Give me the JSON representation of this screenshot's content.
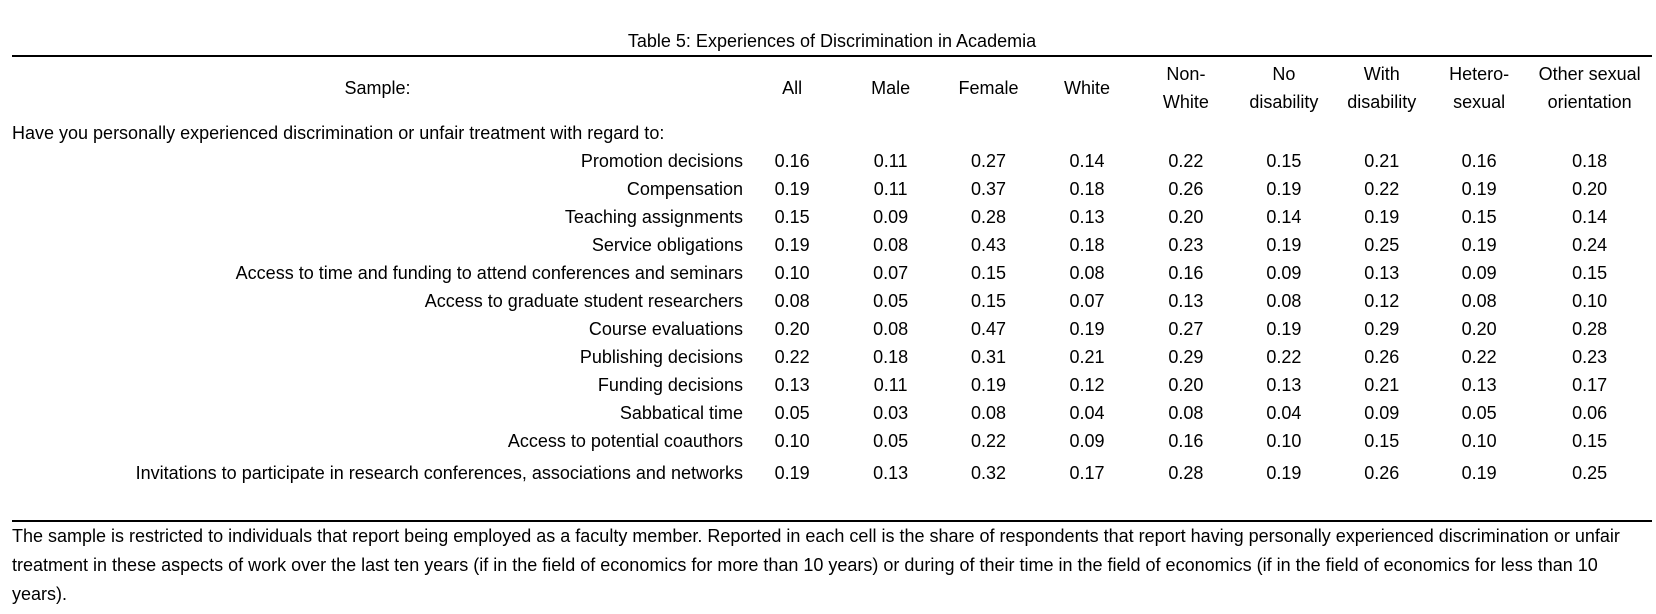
{
  "title": "Table 5: Experiences of Discrimination in Academia",
  "sample_label": "Sample:",
  "columns": [
    {
      "line1": "All",
      "line2": ""
    },
    {
      "line1": "Male",
      "line2": ""
    },
    {
      "line1": "Female",
      "line2": ""
    },
    {
      "line1": "White",
      "line2": ""
    },
    {
      "line1": "Non-",
      "line2": "White"
    },
    {
      "line1": "No",
      "line2": "disability"
    },
    {
      "line1": "With",
      "line2": "disability"
    },
    {
      "line1": "Hetero-",
      "line2": "sexual"
    },
    {
      "line1": "Other sexual",
      "line2": "orientation"
    }
  ],
  "question": "Have you personally experienced discrimination or unfair treatment with regard to:",
  "rows": [
    {
      "label": "Promotion decisions",
      "values": [
        "0.16",
        "0.11",
        "0.27",
        "0.14",
        "0.22",
        "0.15",
        "0.21",
        "0.16",
        "0.18"
      ]
    },
    {
      "label": "Compensation",
      "values": [
        "0.19",
        "0.11",
        "0.37",
        "0.18",
        "0.26",
        "0.19",
        "0.22",
        "0.19",
        "0.20"
      ]
    },
    {
      "label": "Teaching assignments",
      "values": [
        "0.15",
        "0.09",
        "0.28",
        "0.13",
        "0.20",
        "0.14",
        "0.19",
        "0.15",
        "0.14"
      ]
    },
    {
      "label": "Service obligations",
      "values": [
        "0.19",
        "0.08",
        "0.43",
        "0.18",
        "0.23",
        "0.19",
        "0.25",
        "0.19",
        "0.24"
      ]
    },
    {
      "label": "Access to time and funding to attend conferences and seminars",
      "values": [
        "0.10",
        "0.07",
        "0.15",
        "0.08",
        "0.16",
        "0.09",
        "0.13",
        "0.09",
        "0.15"
      ]
    },
    {
      "label": "Access to graduate student researchers",
      "values": [
        "0.08",
        "0.05",
        "0.15",
        "0.07",
        "0.13",
        "0.08",
        "0.12",
        "0.08",
        "0.10"
      ]
    },
    {
      "label": "Course evaluations",
      "values": [
        "0.20",
        "0.08",
        "0.47",
        "0.19",
        "0.27",
        "0.19",
        "0.29",
        "0.20",
        "0.28"
      ]
    },
    {
      "label": "Publishing decisions",
      "values": [
        "0.22",
        "0.18",
        "0.31",
        "0.21",
        "0.29",
        "0.22",
        "0.26",
        "0.22",
        "0.23"
      ]
    },
    {
      "label": "Funding decisions",
      "values": [
        "0.13",
        "0.11",
        "0.19",
        "0.12",
        "0.20",
        "0.13",
        "0.21",
        "0.13",
        "0.17"
      ]
    },
    {
      "label": "Sabbatical time",
      "values": [
        "0.05",
        "0.03",
        "0.08",
        "0.04",
        "0.08",
        "0.04",
        "0.09",
        "0.05",
        "0.06"
      ]
    },
    {
      "label": "Access to potential coauthors",
      "values": [
        "0.10",
        "0.05",
        "0.22",
        "0.09",
        "0.16",
        "0.10",
        "0.15",
        "0.10",
        "0.15"
      ]
    },
    {
      "label": "Invitations to participate in research conferences, associations and networks",
      "values": [
        "0.19",
        "0.13",
        "0.32",
        "0.17",
        "0.28",
        "0.19",
        "0.26",
        "0.19",
        "0.25"
      ]
    }
  ],
  "note": "The sample is restricted to individuals that report being employed as a faculty member. Reported in each cell is the share of respondents that report having personally experienced discrimination or unfair treatment in these aspects of work over the last ten years (if in the field of economics for more than 10 years) or during of their time in the field of economics (if in the field of economics for less than 10 years)."
}
